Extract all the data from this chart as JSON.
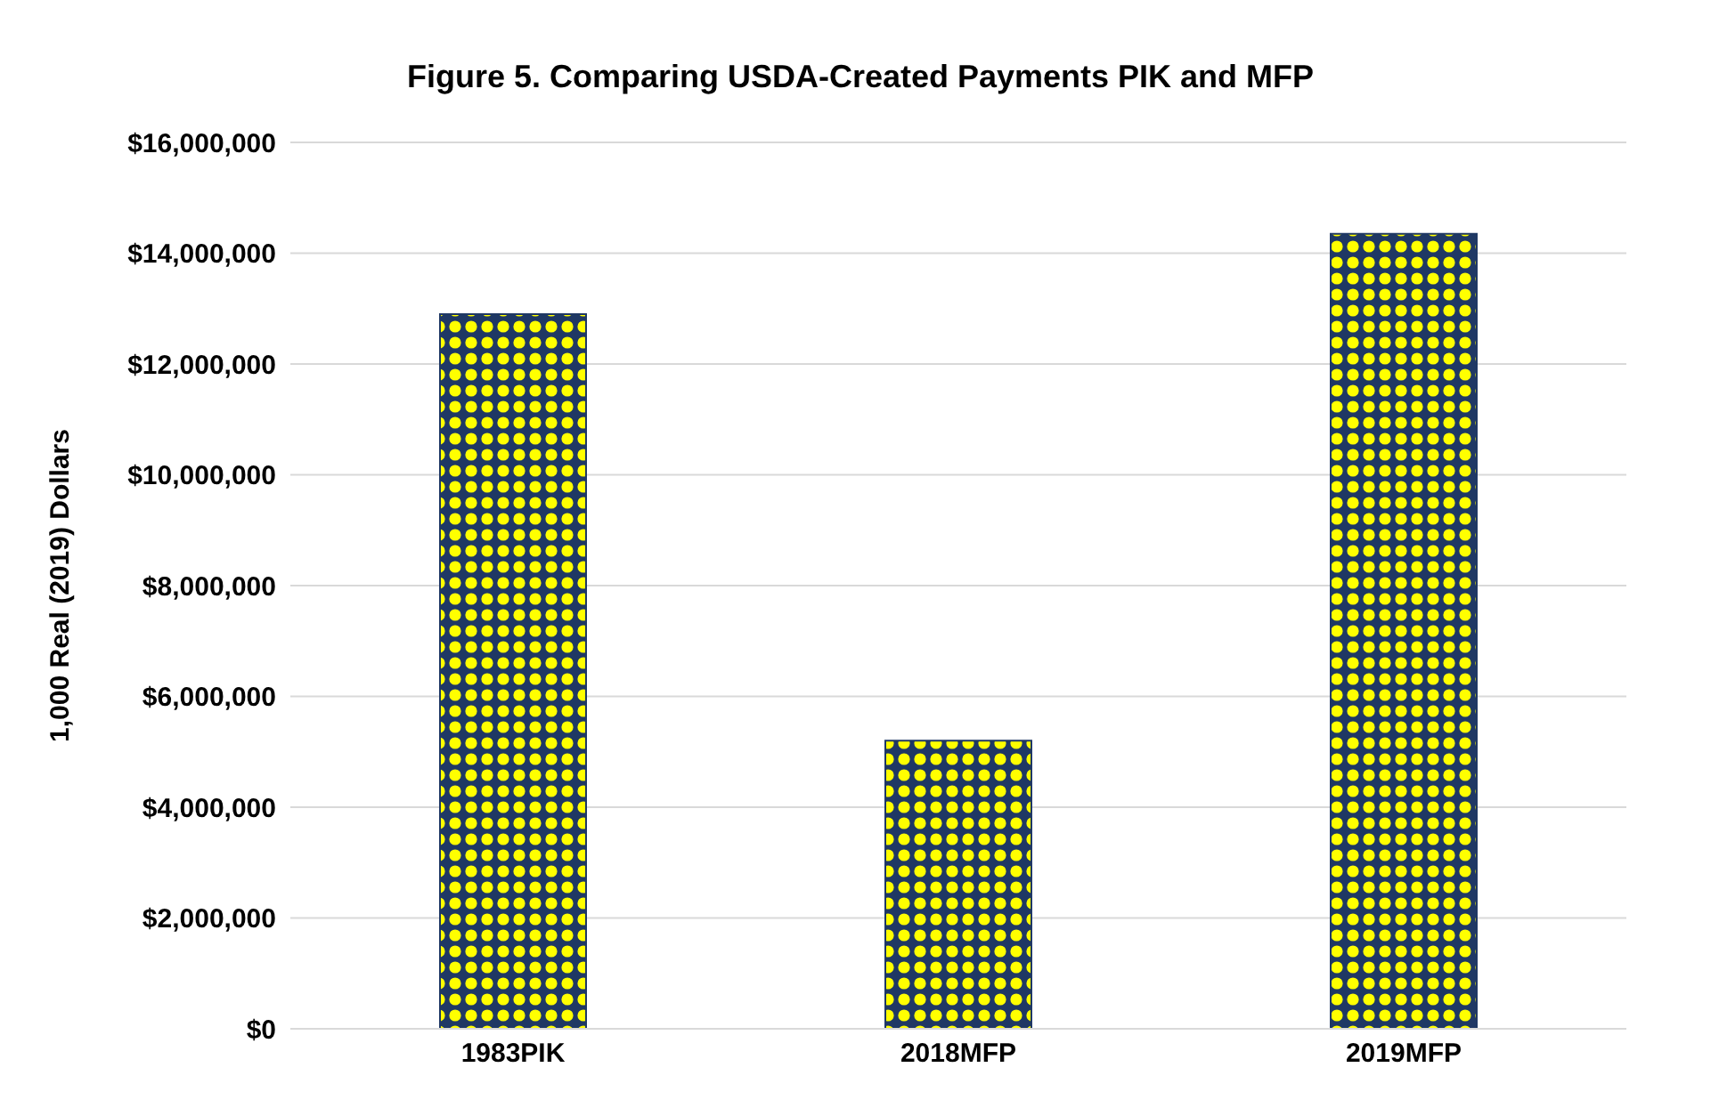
{
  "chart_data": {
    "type": "bar",
    "title": "Figure 5. Comparing USDA-Created Payments PIK and MFP",
    "ylabel": "1,000 Real (2019) Dollars",
    "categories": [
      "1983PIK",
      "2018MFP",
      "2019MFP"
    ],
    "values": [
      12900000,
      5200000,
      14350000
    ],
    "color": "#1f3864",
    "ylim": [
      0,
      16000000
    ],
    "yticks": [
      {
        "value": 0,
        "label": "$0"
      },
      {
        "value": 2000000,
        "label": "$2,000,000"
      },
      {
        "value": 4000000,
        "label": "$4,000,000"
      },
      {
        "value": 6000000,
        "label": "$6,000,000"
      },
      {
        "value": 8000000,
        "label": "$8,000,000"
      },
      {
        "value": 10000000,
        "label": "$10,000,000"
      },
      {
        "value": 12000000,
        "label": "$12,000,000"
      },
      {
        "value": 14000000,
        "label": "$14,000,000"
      },
      {
        "value": 16000000,
        "label": "$16,000,000"
      }
    ],
    "grid": "y",
    "legend": false
  }
}
